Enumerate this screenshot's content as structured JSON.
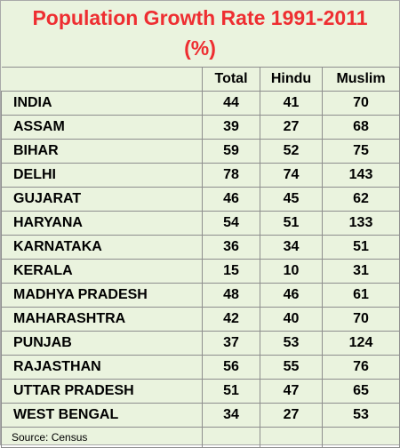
{
  "chart_data": {
    "type": "table",
    "title_line1": "Population Growth Rate 1991-2011",
    "title_line2": "(%)",
    "columns": [
      "",
      "Total",
      "Hindu",
      "Muslim"
    ],
    "rows": [
      {
        "state": "INDIA",
        "total": 44,
        "hindu": 41,
        "muslim": 70
      },
      {
        "state": "ASSAM",
        "total": 39,
        "hindu": 27,
        "muslim": 68
      },
      {
        "state": "BIHAR",
        "total": 59,
        "hindu": 52,
        "muslim": 75
      },
      {
        "state": "DELHI",
        "total": 78,
        "hindu": 74,
        "muslim": 143
      },
      {
        "state": "GUJARAT",
        "total": 46,
        "hindu": 45,
        "muslim": 62
      },
      {
        "state": "HARYANA",
        "total": 54,
        "hindu": 51,
        "muslim": 133
      },
      {
        "state": "KARNATAKA",
        "total": 36,
        "hindu": 34,
        "muslim": 51
      },
      {
        "state": "KERALA",
        "total": 15,
        "hindu": 10,
        "muslim": 31
      },
      {
        "state": "MADHYA PRADESH",
        "total": 48,
        "hindu": 46,
        "muslim": 61
      },
      {
        "state": "MAHARASHTRA",
        "total": 42,
        "hindu": 40,
        "muslim": 70
      },
      {
        "state": "PUNJAB",
        "total": 37,
        "hindu": 53,
        "muslim": 124
      },
      {
        "state": "RAJASTHAN",
        "total": 56,
        "hindu": 55,
        "muslim": 76
      },
      {
        "state": "UTTAR PRADESH",
        "total": 51,
        "hindu": 47,
        "muslim": 65
      },
      {
        "state": "WEST BENGAL",
        "total": 34,
        "hindu": 27,
        "muslim": 53
      }
    ],
    "source": "Source: Census",
    "colors": {
      "background": "#eaf3de",
      "title": "#ee2e31",
      "grid": "#8e8e8e"
    }
  }
}
